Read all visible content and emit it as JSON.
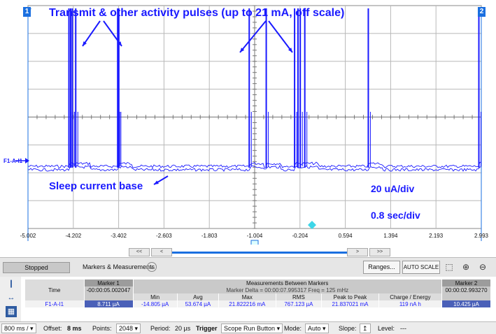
{
  "annotations": {
    "top": "Transmit & other activity pulses (up to 21 mA, off scale)",
    "sleep": "Sleep current base",
    "scale_y": "20 uA/div",
    "scale_x": "0.8 sec/div"
  },
  "markers": {
    "m1": "1",
    "m2": "2"
  },
  "channel_label": "F1-A-I1",
  "chart_data": {
    "type": "line",
    "xlabel": "",
    "ylabel": "",
    "x_ticks": [
      "-5.002",
      "-4.202",
      "-3.402",
      "-2.603",
      "-1.803",
      "-1.004",
      "-0.204",
      "0.594",
      "1.394",
      "2.193",
      "2.993"
    ],
    "x_range": [
      -5.002,
      2.993
    ],
    "grid": true,
    "series": [
      {
        "pulse_x": [
          -4.28,
          -4.25,
          -4.22,
          -4.16,
          -3.42,
          -3.4,
          -1.1,
          -0.8,
          -0.3,
          -0.24,
          -0.2,
          -0.12,
          1.0,
          2.95
        ]
      }
    ]
  },
  "nav": {
    "first": "<<",
    "prev": "<",
    "next": ">",
    "last": ">>"
  },
  "toolbar": {
    "status": "Stopped",
    "markers_measurements": "Markers & Measurements",
    "ranges": "Ranges...",
    "autoscale": "AUTO SCALE"
  },
  "measurements": {
    "marker1_header": "Marker 1",
    "marker2_header": "Marker 2",
    "between_header": "Measurements Between Markers",
    "time_label": "Time",
    "marker1_time": "-00:00:05.002047",
    "marker2_time": "00:00:02.993270",
    "delta": "Marker Delta = 00:00:07.995317   Freq = 125 mHz",
    "cols": [
      "Min",
      "Avg",
      "Max",
      "RMS",
      "Peak to Peak",
      "Charge / Energy"
    ],
    "channel": "F1-A-I1",
    "marker1_value": "8.711 µA",
    "marker2_value": "10.425 µA",
    "values": [
      "-14.805 µA",
      "53.674 µA",
      "21.822216 mA",
      "767.123 µA",
      "21.837021 mA",
      "119 nA h"
    ]
  },
  "status_bar": {
    "timebase": "800 ms /",
    "offset_label": "Offset:",
    "offset_value": "8 ms",
    "points_label": "Points:",
    "points_value": "2048",
    "period_label": "Period:",
    "period_value": "20 µs",
    "trigger_label": "Trigger",
    "trigger_value": "Scope Run Button",
    "mode_label": "Mode:",
    "mode_value": "Auto",
    "slope_label": "Slope:",
    "level_label": "Level:",
    "level_value": "---"
  },
  "colors": {
    "trace": "#1a1aff",
    "grid": "#b8b8b8",
    "marker": "#1a6fe0"
  }
}
